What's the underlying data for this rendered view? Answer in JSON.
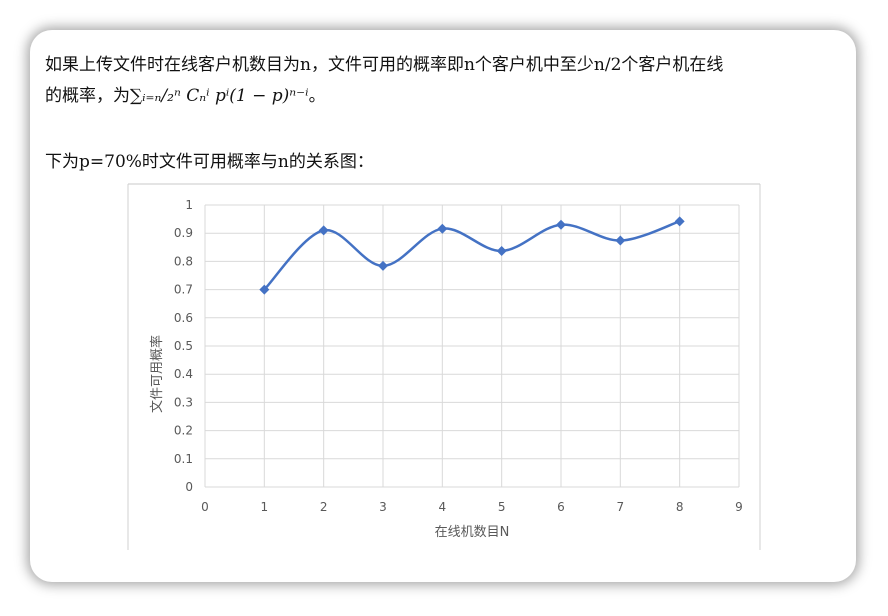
{
  "text": {
    "line1": "如果上传文件时在线客户机数目为n，文件可用的概率即n个客户机中至少n/2个客户机在线",
    "line2_prefix": "的概率，为",
    "formula": "∑ᵢ₌ₙ/₂ⁿ Cₙⁱ pⁱ(1 − p)ⁿ⁻ⁱ",
    "line2_suffix": "。",
    "line3": "下为p=70%时文件可用概率与n的关系图："
  },
  "colors": {
    "series": "#4472C4",
    "grid": "#d9d9d9",
    "axis_text": "#595959"
  },
  "chart_data": {
    "type": "line",
    "x": [
      1,
      2,
      3,
      4,
      5,
      6,
      7,
      8
    ],
    "series": [
      {
        "values": [
          0.7,
          0.91,
          0.784,
          0.916,
          0.837,
          0.93,
          0.874,
          0.942
        ]
      }
    ],
    "xlabel": "在线机数目N",
    "ylabel": "文件可用概率",
    "xlim": [
      0,
      9
    ],
    "ylim": [
      0,
      1
    ],
    "xticks": [
      "0",
      "1",
      "2",
      "3",
      "4",
      "5",
      "6",
      "7",
      "8",
      "9"
    ],
    "yticks": [
      "0",
      "0.1",
      "0.2",
      "0.3",
      "0.4",
      "0.5",
      "0.6",
      "0.7",
      "0.8",
      "0.9",
      "1"
    ],
    "grid": true,
    "smooth": true,
    "marker": "diamond"
  }
}
